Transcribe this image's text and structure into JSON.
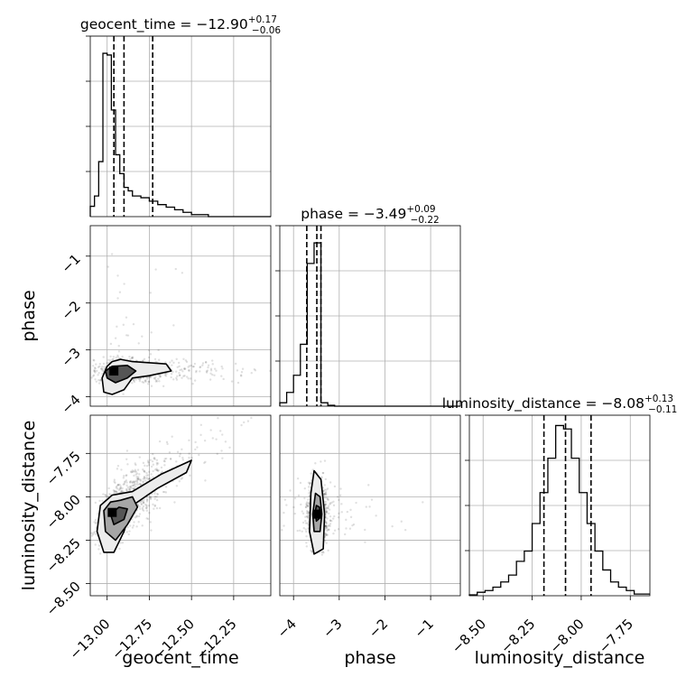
{
  "figure": {
    "type": "corner-plot",
    "parameters": [
      "geocent_time",
      "phase",
      "luminosity_distance"
    ]
  },
  "chart_data": [
    {
      "type": "histogram",
      "name": "geocent_time-marginal",
      "title_text": "geocent_time = −12.90",
      "title_plus": "+0.17",
      "title_minus": "−0.06",
      "xlim": [
        -13.1,
        -12.03
      ],
      "bin_edges": [
        -13.1,
        -13.075,
        -13.05,
        -13.025,
        -13.0,
        -12.975,
        -12.95,
        -12.925,
        -12.9,
        -12.875,
        -12.85,
        -12.8,
        -12.75,
        -12.7,
        -12.65,
        -12.6,
        -12.55,
        -12.5,
        -12.4,
        -12.03
      ],
      "counts": [
        0.06,
        0.12,
        0.32,
        0.95,
        0.94,
        0.62,
        0.36,
        0.25,
        0.17,
        0.15,
        0.12,
        0.11,
        0.09,
        0.07,
        0.055,
        0.04,
        0.025,
        0.012,
        0.0
      ],
      "ymax": 1.0,
      "quantiles": [
        -12.96,
        -12.9,
        -12.73
      ],
      "xticks": [
        -13.0,
        -12.75,
        -12.5,
        -12.25
      ],
      "xticklabels": [
        "−13.00",
        "−12.75",
        "−12.50",
        "−12.25"
      ],
      "xlabel": "geocent_time"
    },
    {
      "type": "histogram",
      "name": "phase-marginal",
      "title_text": "phase = −3.49",
      "title_plus": "+0.09",
      "title_minus": "−0.22",
      "xlim": [
        -4.3,
        -0.35
      ],
      "bin_edges": [
        -4.3,
        -4.15,
        -4.0,
        -3.85,
        -3.7,
        -3.55,
        -3.4,
        -3.25,
        -3.1,
        -0.35
      ],
      "counts": [
        0.02,
        0.08,
        0.18,
        0.36,
        0.83,
        0.95,
        0.02,
        0.005,
        0.0
      ],
      "ymax": 1.0,
      "quantiles": [
        -3.71,
        -3.49,
        -3.4
      ],
      "xticks": [
        -4,
        -3,
        -2,
        -1
      ],
      "xticklabels": [
        "−4",
        "−3",
        "−2",
        "−1"
      ],
      "xlabel": "phase"
    },
    {
      "type": "histogram",
      "name": "luminosity_distance-marginal",
      "title_text": "luminosity_distance = −8.08",
      "title_plus": "+0.13",
      "title_minus": "−0.11",
      "xlim": [
        -8.57,
        -7.65
      ],
      "bin_edges": [
        -8.57,
        -8.53,
        -8.49,
        -8.45,
        -8.41,
        -8.37,
        -8.33,
        -8.29,
        -8.25,
        -8.21,
        -8.17,
        -8.13,
        -8.09,
        -8.05,
        -8.01,
        -7.97,
        -7.93,
        -7.89,
        -7.85,
        -7.81,
        -7.77,
        -7.73,
        -7.69,
        -7.65
      ],
      "counts": [
        0.005,
        0.02,
        0.03,
        0.05,
        0.08,
        0.12,
        0.2,
        0.26,
        0.42,
        0.6,
        0.8,
        0.99,
        0.97,
        0.8,
        0.6,
        0.42,
        0.26,
        0.15,
        0.08,
        0.05,
        0.03,
        0.01,
        0.01
      ],
      "ymax": 1.0,
      "quantiles": [
        -8.19,
        -8.08,
        -7.95
      ],
      "xticks": [
        -8.5,
        -8.25,
        -8.0,
        -7.75
      ],
      "xticklabels": [
        "−8.50",
        "−8.25",
        "−8.00",
        "−7.75"
      ],
      "xlabel": "luminosity_distance"
    },
    {
      "type": "scatter-contour",
      "name": "phase-vs-geocent_time",
      "x": "geocent_time",
      "y": "phase",
      "xlim": [
        -13.1,
        -12.03
      ],
      "ylim": [
        -4.2,
        -0.35
      ],
      "yticks": [
        -4,
        -3,
        -2,
        -1
      ],
      "yticklabels": [
        "−4",
        "−3",
        "−2",
        "−1"
      ],
      "ylabel": "phase",
      "contours": [
        {
          "level": "outer",
          "points": [
            [
              -12.97,
              -3.25
            ],
            [
              -12.92,
              -3.2
            ],
            [
              -12.85,
              -3.25
            ],
            [
              -12.65,
              -3.3
            ],
            [
              -12.62,
              -3.45
            ],
            [
              -12.75,
              -3.55
            ],
            [
              -12.85,
              -3.6
            ],
            [
              -12.9,
              -3.85
            ],
            [
              -12.97,
              -3.95
            ],
            [
              -13.02,
              -3.9
            ],
            [
              -13.03,
              -3.6
            ],
            [
              -13.0,
              -3.35
            ]
          ]
        },
        {
          "level": "inner",
          "points": [
            [
              -12.97,
              -3.35
            ],
            [
              -12.88,
              -3.33
            ],
            [
              -12.83,
              -3.45
            ],
            [
              -12.88,
              -3.6
            ],
            [
              -12.95,
              -3.7
            ],
            [
              -13.0,
              -3.6
            ],
            [
              -13.01,
              -3.45
            ]
          ]
        }
      ],
      "density_peak": [
        -12.96,
        -3.45
      ]
    },
    {
      "type": "scatter-contour",
      "name": "luminosity_distance-vs-geocent_time",
      "x": "geocent_time",
      "y": "luminosity_distance",
      "xlim": [
        -13.1,
        -12.03
      ],
      "ylim": [
        -8.57,
        -7.53
      ],
      "yticks": [
        -8.5,
        -8.25,
        -8.0,
        -7.75
      ],
      "yticklabels": [
        "−8.50",
        "−8.25",
        "−8.00",
        "−7.75"
      ],
      "ylabel": "luminosity_distance",
      "contours": [
        {
          "level": "outer",
          "points": [
            [
              -12.85,
              -7.97
            ],
            [
              -12.68,
              -7.87
            ],
            [
              -12.5,
              -7.79
            ],
            [
              -12.53,
              -7.86
            ],
            [
              -12.7,
              -7.95
            ],
            [
              -12.85,
              -8.05
            ],
            [
              -12.9,
              -8.2
            ],
            [
              -12.96,
              -8.32
            ],
            [
              -13.02,
              -8.32
            ],
            [
              -13.06,
              -8.2
            ],
            [
              -13.04,
              -8.05
            ],
            [
              -12.97,
              -7.99
            ]
          ]
        },
        {
          "level": "mid",
          "points": [
            [
              -12.92,
              -8.02
            ],
            [
              -12.85,
              -8.0
            ],
            [
              -12.82,
              -8.06
            ],
            [
              -12.88,
              -8.16
            ],
            [
              -12.95,
              -8.25
            ],
            [
              -13.01,
              -8.2
            ],
            [
              -13.02,
              -8.08
            ],
            [
              -12.98,
              -8.03
            ]
          ]
        },
        {
          "level": "inner",
          "points": [
            [
              -12.93,
              -8.06
            ],
            [
              -12.88,
              -8.07
            ],
            [
              -12.9,
              -8.13
            ],
            [
              -12.96,
              -8.16
            ],
            [
              -12.98,
              -8.1
            ]
          ]
        }
      ],
      "density_peak": [
        -12.97,
        -8.09
      ]
    },
    {
      "type": "scatter-contour",
      "name": "luminosity_distance-vs-phase",
      "x": "phase",
      "y": "luminosity_distance",
      "xlim": [
        -4.3,
        -0.35
      ],
      "ylim": [
        -8.57,
        -7.53
      ],
      "contours": [
        {
          "level": "outer",
          "points": [
            [
              -3.55,
              -7.85
            ],
            [
              -3.4,
              -7.9
            ],
            [
              -3.32,
              -8.1
            ],
            [
              -3.35,
              -8.3
            ],
            [
              -3.55,
              -8.33
            ],
            [
              -3.65,
              -8.2
            ],
            [
              -3.62,
              -7.98
            ]
          ]
        },
        {
          "level": "mid",
          "points": [
            [
              -3.52,
              -7.98
            ],
            [
              -3.42,
              -8.0
            ],
            [
              -3.38,
              -8.1
            ],
            [
              -3.42,
              -8.2
            ],
            [
              -3.55,
              -8.2
            ],
            [
              -3.58,
              -8.1
            ]
          ]
        },
        {
          "level": "inner",
          "points": [
            [
              -3.5,
              -8.05
            ],
            [
              -3.43,
              -8.06
            ],
            [
              -3.42,
              -8.12
            ],
            [
              -3.5,
              -8.14
            ],
            [
              -3.53,
              -8.09
            ]
          ]
        }
      ],
      "density_peak": [
        -3.47,
        -8.1
      ]
    }
  ]
}
